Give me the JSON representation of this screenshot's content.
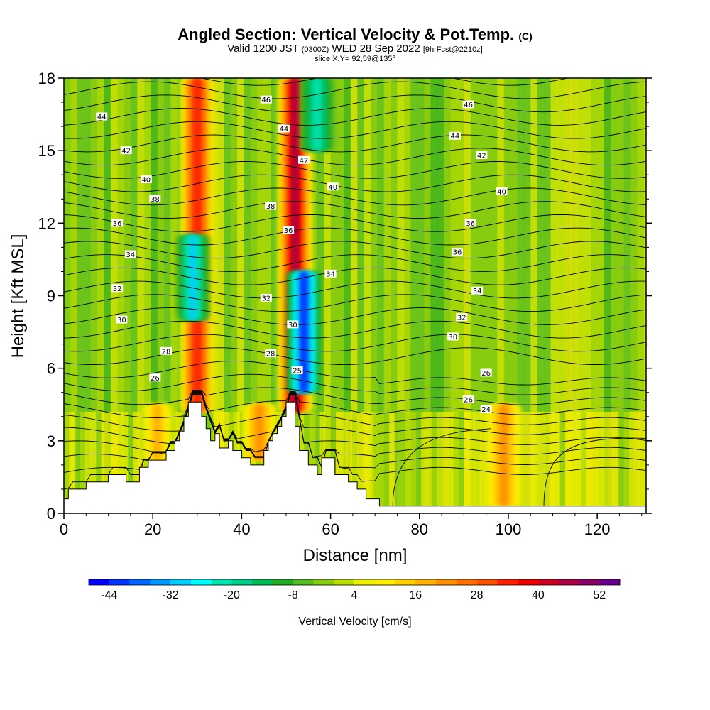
{
  "header": {
    "title": "Angled Section: Vertical Velocity & Pot.Temp.",
    "title_mark": "(C)",
    "valid_prefix": "Valid 1200 JST",
    "valid_utc": "(0300Z)",
    "valid_date": "WED 28 Sep 2022",
    "forecast": "[9hrFcst@2210z]",
    "slice": "slice X,Y= 92,59@135°"
  },
  "chart_data": {
    "type": "heatmap",
    "xlabel": "Distance [nm]",
    "ylabel": "Height [Kft MSL]",
    "xlim": [
      0,
      131
    ],
    "ylim": [
      0,
      18
    ],
    "x_ticks": [
      0,
      20,
      40,
      60,
      80,
      100,
      120
    ],
    "y_ticks": [
      0,
      3,
      6,
      9,
      12,
      15,
      18
    ],
    "colorbar": {
      "label": "Vertical Velocity [cm/s]",
      "tick_labels": [
        "-44",
        "-32",
        "-20",
        "-8",
        "4",
        "16",
        "28",
        "40",
        "52"
      ],
      "colors": [
        "#0000ff",
        "#0033ff",
        "#0066ff",
        "#0099ff",
        "#00ccff",
        "#00ffff",
        "#00e5b0",
        "#00cc88",
        "#00bb55",
        "#22aa22",
        "#55bb22",
        "#88cc11",
        "#bbdd00",
        "#eeee00",
        "#ffee00",
        "#ffd000",
        "#ffb000",
        "#ff9000",
        "#ff7000",
        "#ff5000",
        "#ff2000",
        "#ee0000",
        "#cc0022",
        "#aa0044",
        "#880066",
        "#660088"
      ]
    },
    "terrain_profile": [
      [
        0,
        0.6
      ],
      [
        1,
        0.6
      ],
      [
        1,
        1.0
      ],
      [
        5,
        1.0
      ],
      [
        5,
        1.3
      ],
      [
        10,
        1.3
      ],
      [
        10,
        1.6
      ],
      [
        14,
        1.6
      ],
      [
        14,
        1.3
      ],
      [
        17,
        1.3
      ],
      [
        17,
        1.9
      ],
      [
        19,
        1.9
      ],
      [
        19,
        2.2
      ],
      [
        23,
        2.2
      ],
      [
        23,
        2.6
      ],
      [
        25,
        2.6
      ],
      [
        25,
        3.0
      ],
      [
        26,
        3.0
      ],
      [
        26,
        3.4
      ],
      [
        27,
        3.4
      ],
      [
        27,
        4.0
      ],
      [
        28,
        4.0
      ],
      [
        28,
        4.6
      ],
      [
        31,
        4.6
      ],
      [
        31,
        4.0
      ],
      [
        32,
        4.0
      ],
      [
        32,
        3.5
      ],
      [
        33,
        3.5
      ],
      [
        33,
        3.0
      ],
      [
        34,
        3.0
      ],
      [
        34,
        3.3
      ],
      [
        35,
        3.3
      ],
      [
        35,
        2.7
      ],
      [
        37,
        2.7
      ],
      [
        37,
        3.0
      ],
      [
        38,
        3.0
      ],
      [
        38,
        2.6
      ],
      [
        40,
        2.6
      ],
      [
        40,
        2.3
      ],
      [
        42,
        2.3
      ],
      [
        42,
        2.0
      ],
      [
        45,
        2.0
      ],
      [
        45,
        2.6
      ],
      [
        46,
        2.6
      ],
      [
        46,
        3.0
      ],
      [
        47,
        3.0
      ],
      [
        47,
        3.3
      ],
      [
        48,
        3.3
      ],
      [
        48,
        3.6
      ],
      [
        49,
        3.6
      ],
      [
        49,
        4.0
      ],
      [
        50,
        4.0
      ],
      [
        50,
        4.6
      ],
      [
        52,
        4.6
      ],
      [
        52,
        3.6
      ],
      [
        53,
        3.6
      ],
      [
        53,
        2.6
      ],
      [
        55,
        2.6
      ],
      [
        55,
        2.0
      ],
      [
        57,
        2.0
      ],
      [
        57,
        1.6
      ],
      [
        58,
        1.6
      ],
      [
        58,
        2.3
      ],
      [
        61,
        2.3
      ],
      [
        61,
        1.6
      ],
      [
        64,
        1.6
      ],
      [
        64,
        1.3
      ],
      [
        66,
        1.3
      ],
      [
        66,
        1.0
      ],
      [
        68,
        1.0
      ],
      [
        68,
        0.6
      ],
      [
        71,
        0.6
      ],
      [
        71,
        0.3
      ],
      [
        131,
        0.3
      ]
    ],
    "updrafts": [
      {
        "x": 30,
        "z0": 4.2,
        "z1": 18,
        "peak_cm_s": 35
      },
      {
        "x": 52,
        "z0": 4.2,
        "z1": 18,
        "peak_cm_s": 45
      },
      {
        "x": 44,
        "z0": 2.2,
        "z1": 4.5,
        "peak_cm_s": 20
      },
      {
        "x": 21,
        "z0": 2.2,
        "z1": 4.5,
        "peak_cm_s": 18
      },
      {
        "x": 99,
        "z0": 0.3,
        "z1": 4.5,
        "peak_cm_s": 20
      }
    ],
    "downdrafts": [
      {
        "x": 29,
        "z0": 8,
        "z1": 11.5,
        "peak_cm_s": -30
      },
      {
        "x": 54,
        "z0": 5,
        "z1": 10,
        "peak_cm_s": -42
      },
      {
        "x": 57,
        "z0": 15,
        "z1": 18,
        "peak_cm_s": -22
      }
    ],
    "theta_contours": [
      {
        "label": "24",
        "x": 95,
        "z": 4.3
      },
      {
        "label": "25",
        "x": 52.5,
        "z": 5.9
      },
      {
        "label": "26",
        "x": 20.5,
        "z": 5.6
      },
      {
        "label": "26",
        "x": 91,
        "z": 4.7
      },
      {
        "label": "26",
        "x": 95,
        "z": 5.8
      },
      {
        "label": "28",
        "x": 23,
        "z": 6.7
      },
      {
        "label": "28",
        "x": 46.5,
        "z": 6.6
      },
      {
        "label": "30",
        "x": 13,
        "z": 8.0
      },
      {
        "label": "30",
        "x": 51.5,
        "z": 7.8
      },
      {
        "label": "30",
        "x": 87.5,
        "z": 7.3
      },
      {
        "label": "32",
        "x": 12,
        "z": 9.3
      },
      {
        "label": "32",
        "x": 45.5,
        "z": 8.9
      },
      {
        "label": "32",
        "x": 89.5,
        "z": 8.1
      },
      {
        "label": "34",
        "x": 15,
        "z": 10.7
      },
      {
        "label": "34",
        "x": 60,
        "z": 9.9
      },
      {
        "label": "34",
        "x": 93,
        "z": 9.2
      },
      {
        "label": "36",
        "x": 12,
        "z": 12.0
      },
      {
        "label": "36",
        "x": 50.5,
        "z": 11.7
      },
      {
        "label": "36",
        "x": 88.5,
        "z": 10.8
      },
      {
        "label": "36",
        "x": 91.5,
        "z": 12.0
      },
      {
        "label": "38",
        "x": 20.5,
        "z": 13.0
      },
      {
        "label": "38",
        "x": 46.5,
        "z": 12.7
      },
      {
        "label": "40",
        "x": 18.5,
        "z": 13.8
      },
      {
        "label": "40",
        "x": 60.5,
        "z": 13.5
      },
      {
        "label": "40",
        "x": 98.5,
        "z": 13.3
      },
      {
        "label": "42",
        "x": 14,
        "z": 15.0
      },
      {
        "label": "42",
        "x": 54,
        "z": 14.6
      },
      {
        "label": "42",
        "x": 94,
        "z": 14.8
      },
      {
        "label": "44",
        "x": 8.5,
        "z": 16.4
      },
      {
        "label": "44",
        "x": 49.5,
        "z": 15.9
      },
      {
        "label": "44",
        "x": 88,
        "z": 15.6
      },
      {
        "label": "46",
        "x": 45.5,
        "z": 17.1
      },
      {
        "label": "46",
        "x": 91,
        "z": 16.9
      }
    ]
  }
}
